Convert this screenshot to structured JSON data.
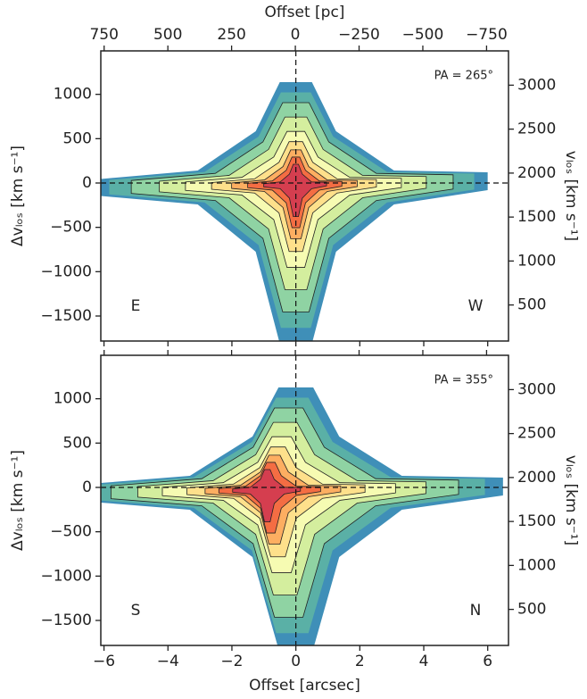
{
  "chart_data": [
    {
      "type": "heatmap",
      "x2label": "Offset [pc]",
      "x2lim": [
        763,
        -836
      ],
      "x2ticks": [
        750,
        500,
        250,
        0,
        {
          "value": -250,
          "label": "−250"
        },
        {
          "value": -500,
          "label": "−500"
        },
        {
          "value": -750,
          "label": "−750"
        }
      ],
      "xlim": [
        -6.1,
        6.65
      ],
      "ylabel": "Δvₗₒₛ [km s⁻¹]",
      "ylim": [
        -1782,
        1490
      ],
      "yticks": [
        {
          "value": -1500,
          "label": "−1500"
        },
        {
          "value": -1000,
          "label": "−1000"
        },
        {
          "value": -500,
          "label": "−500"
        },
        0,
        500,
        1000
      ],
      "y2label": "vₗₒₛ [km s⁻¹]",
      "y2lim": [
        90,
        3390
      ],
      "y2ticks": [
        500,
        1000,
        1500,
        2000,
        2500,
        3000
      ],
      "vlines": [
        0
      ],
      "hlines": [
        0
      ],
      "pa_label": "PA = 265°",
      "left_label": "E",
      "right_label": "W"
    },
    {
      "type": "heatmap",
      "xlabel": "Offset [arcsec]",
      "xlim": [
        -6.1,
        6.65
      ],
      "xticks": [
        {
          "value": -6,
          "label": "−6"
        },
        {
          "value": -4,
          "label": "−4"
        },
        {
          "value": -2,
          "label": "−2"
        },
        0,
        2,
        4,
        6
      ],
      "x2lim": [
        763,
        -836
      ],
      "ylabel": "Δvₗₒₛ [km s⁻¹]",
      "ylim": [
        -1782,
        1490
      ],
      "yticks": [
        {
          "value": -1500,
          "label": "−1500"
        },
        {
          "value": -1000,
          "label": "−1000"
        },
        {
          "value": -500,
          "label": "−500"
        },
        0,
        500,
        1000
      ],
      "y2label": "vₗₒₛ [km s⁻¹]",
      "y2lim": [
        90,
        3390
      ],
      "y2ticks": [
        500,
        1000,
        1500,
        2000,
        2500,
        3000
      ],
      "vlines": [
        0
      ],
      "hlines": [
        0
      ],
      "pa_label": "PA = 355°",
      "left_label": "S",
      "right_label": "N"
    }
  ]
}
